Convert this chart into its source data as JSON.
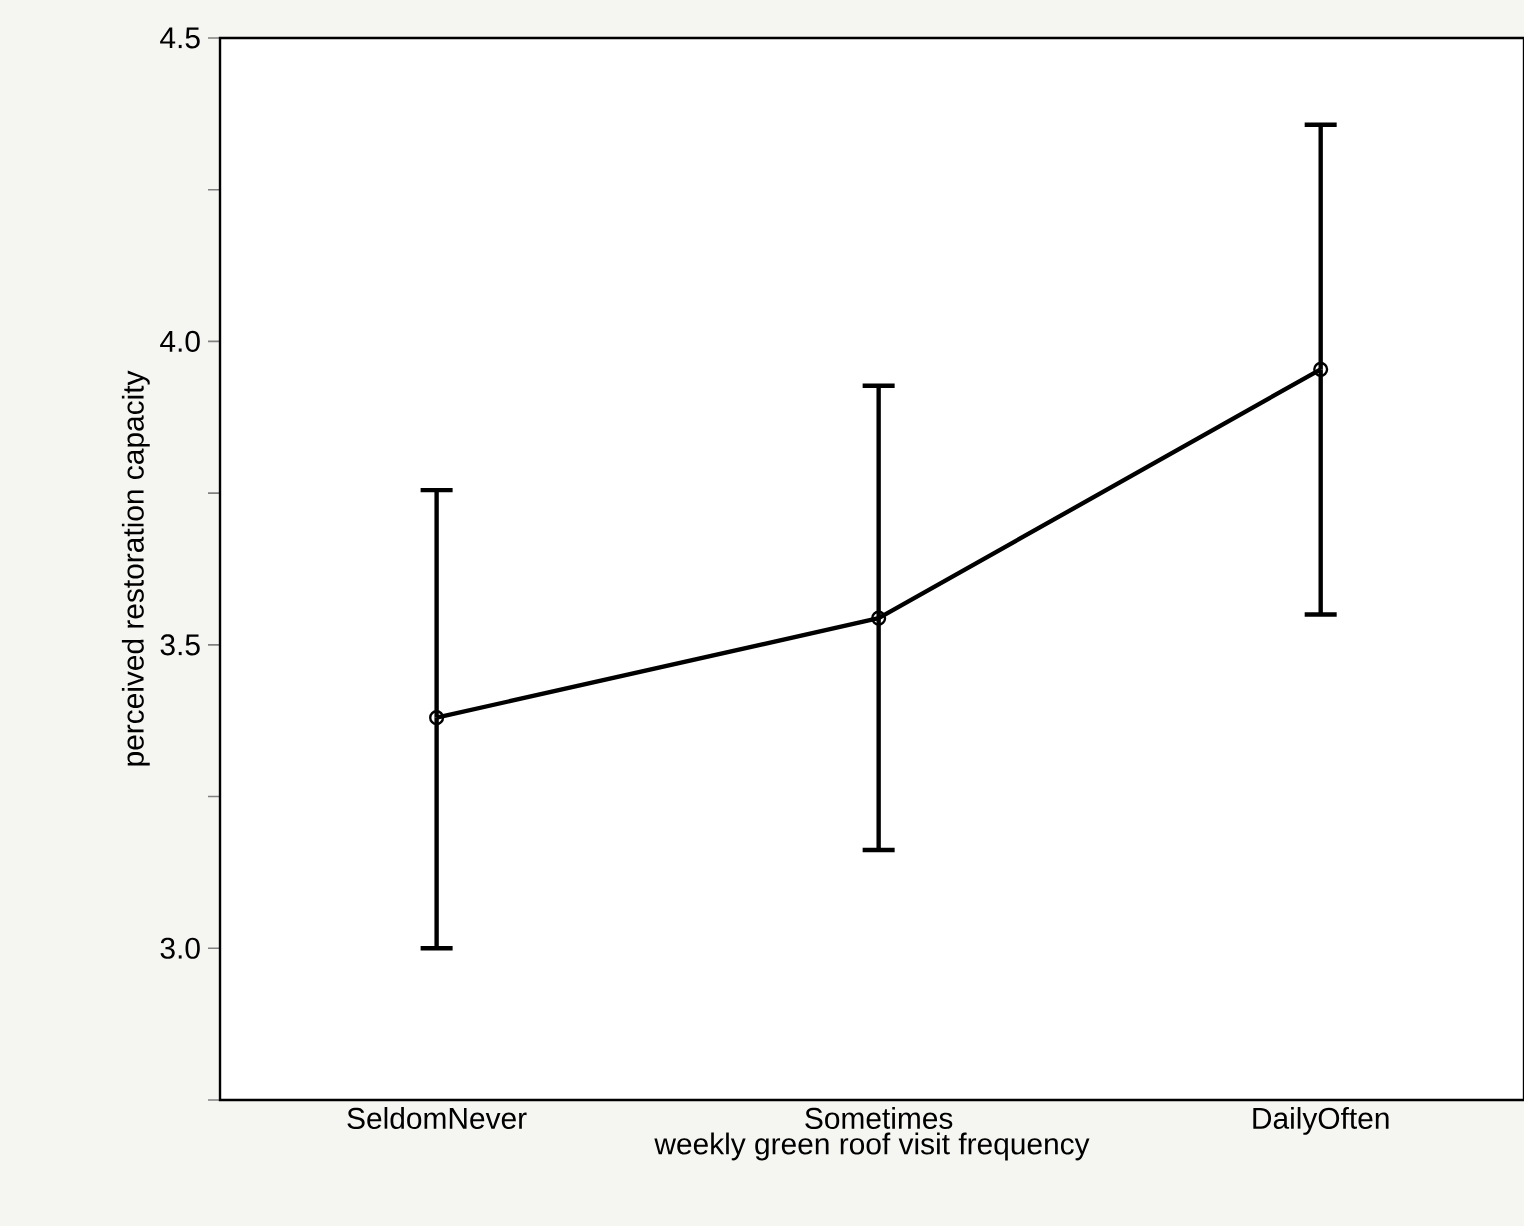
{
  "chart_data": {
    "type": "line",
    "xlabel": "weekly green roof visit frequency",
    "ylabel": "perceived restoration capacity",
    "categories": [
      "SeldomNever",
      "Sometimes",
      "DailyOften"
    ],
    "series": [
      {
        "color": "#000000",
        "values": [
          3.38,
          3.544,
          3.954
        ],
        "errors": [
          [
            3.0,
            3.755
          ],
          [
            3.162,
            3.927
          ],
          [
            3.55,
            4.357
          ]
        ]
      }
    ],
    "ylim": [
      2.75,
      4.5
    ],
    "yticks": [
      {
        "value": 2.75,
        "label": null
      },
      {
        "value": 3.0,
        "label": "3.0"
      },
      {
        "value": 3.25,
        "label": null
      },
      {
        "value": 3.5,
        "label": "3.5"
      },
      {
        "value": 3.75,
        "label": null
      },
      {
        "value": 4.0,
        "label": "4.0"
      },
      {
        "value": 4.25,
        "label": null
      },
      {
        "value": 4.5,
        "label": "4.5"
      }
    ],
    "marker": "circle",
    "line_style": "solid",
    "grid": false,
    "legend": false
  }
}
